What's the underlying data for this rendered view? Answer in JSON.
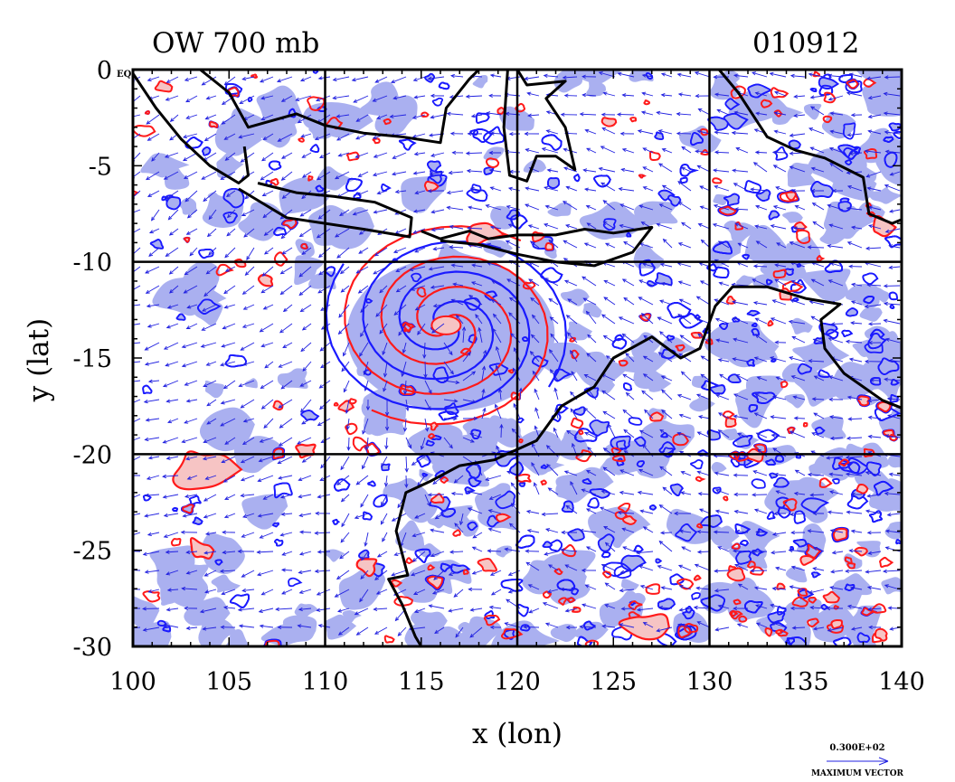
{
  "header": {
    "left_title": "OW 700 mb",
    "right_title": "010912"
  },
  "map": {
    "xlabel": "x (lon)",
    "ylabel": "y (lat)",
    "xlim": [
      100,
      140
    ],
    "ylim": [
      -30,
      0
    ],
    "x_ticks": [
      "100",
      "105",
      "110",
      "115",
      "120",
      "125",
      "130",
      "135",
      "140"
    ],
    "y_ticks": [
      "0",
      "-5",
      "-10",
      "-15",
      "-20",
      "-25",
      "-30"
    ],
    "y_tick_zero_suffix": "EQ",
    "grid_lon": [
      110,
      120,
      130
    ],
    "grid_lat": [
      -10,
      -20
    ],
    "colors": {
      "negative_contour": "#1a1aff",
      "negative_fill": "#aab0f0",
      "positive_contour": "#ff1a1a",
      "positive_fill": "#f6c4c4",
      "vectors": "#2020e0",
      "coastline": "#000000"
    },
    "features": {
      "cyclone_center_lon": 116.3,
      "cyclone_center_lat": -13.3
    }
  },
  "vector_key": {
    "value": "0.300E+02",
    "label": "MAXIMUM VECTOR"
  }
}
